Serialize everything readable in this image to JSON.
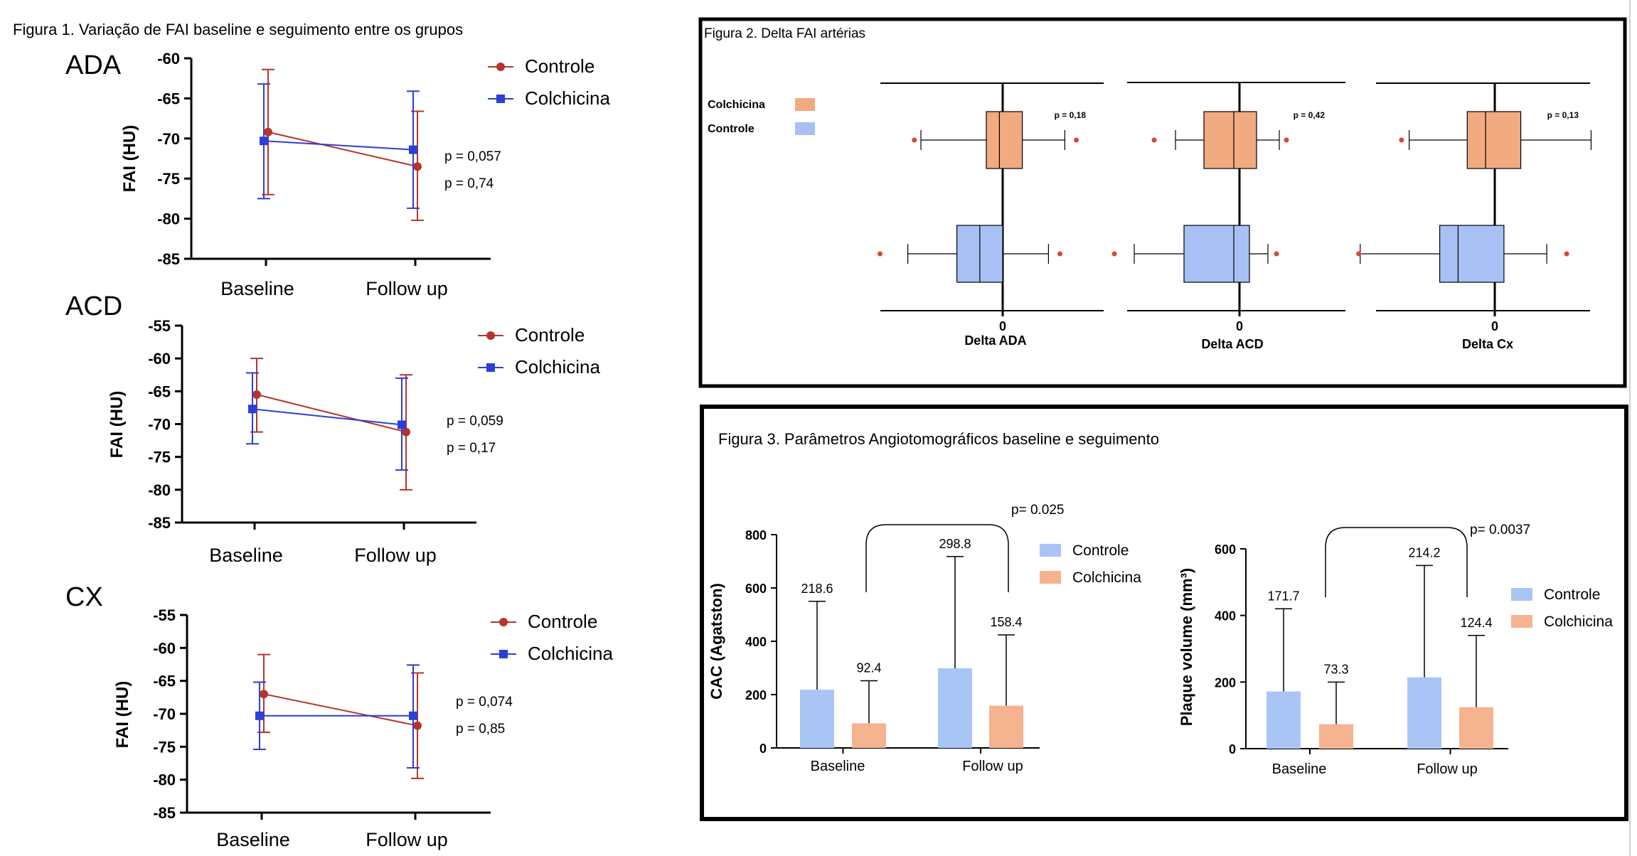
{
  "figure1": {
    "title": "Figura 1. Variação de FAI baseline e seguimento entre os grupos",
    "colors": {
      "Controle": "#b5352b",
      "Colchicina": "#2b3fd6"
    }
  },
  "figure2": {
    "title": "Figura 2. Delta FAI artérias",
    "legend": [
      {
        "name": "Colchicina",
        "color": "#f2aa80"
      },
      {
        "name": "Controle",
        "color": "#a9c0f4"
      }
    ]
  },
  "figure3": {
    "title": "Figura 3. Parâmetros Angiotomográficos baseline e seguimento",
    "colors": {
      "Controle": "#a9c5f5",
      "Colchicina": "#f5b38f"
    }
  },
  "chart_data": [
    {
      "type": "line",
      "id": "ada",
      "panel_label": "ADA",
      "ylabel": "FAI (HU)",
      "categories": [
        "Baseline",
        "Follow up"
      ],
      "ylim": [
        -85,
        -60
      ],
      "yticks": [
        -60,
        -65,
        -70,
        -75,
        -80,
        -85
      ],
      "series": [
        {
          "name": "Controle",
          "values": [
            -69.2,
            -73.5
          ],
          "err_low": [
            -77.0,
            -80.2
          ],
          "err_high": [
            -61.4,
            -66.6
          ]
        },
        {
          "name": "Colchicina",
          "values": [
            -70.3,
            -71.4
          ],
          "err_low": [
            -77.5,
            -78.7
          ],
          "err_high": [
            -63.2,
            -64.1
          ]
        }
      ],
      "annotations": [
        "p = 0,057",
        "p = 0,74"
      ]
    },
    {
      "type": "line",
      "id": "acd",
      "panel_label": "ACD",
      "ylabel": "FAI (HU)",
      "categories": [
        "Baseline",
        "Follow up"
      ],
      "ylim": [
        -85,
        -55
      ],
      "yticks": [
        -55,
        -60,
        -65,
        -70,
        -75,
        -80,
        -85
      ],
      "series": [
        {
          "name": "Controle",
          "values": [
            -65.5,
            -71.2
          ],
          "err_low": [
            -71.2,
            -80.0
          ],
          "err_high": [
            -60.0,
            -62.5
          ]
        },
        {
          "name": "Colchicina",
          "values": [
            -67.7,
            -70.1
          ],
          "err_low": [
            -73.0,
            -77.0
          ],
          "err_high": [
            -62.2,
            -63.0
          ]
        }
      ],
      "annotations": [
        "p = 0,059",
        "p = 0,17"
      ]
    },
    {
      "type": "line",
      "id": "cx",
      "panel_label": "CX",
      "ylabel": "FAI (HU)",
      "categories": [
        "Baseline",
        "Follow up"
      ],
      "ylim": [
        -85,
        -55
      ],
      "yticks": [
        -55,
        -60,
        -65,
        -70,
        -75,
        -80,
        -85
      ],
      "series": [
        {
          "name": "Controle",
          "values": [
            -67.0,
            -71.8
          ],
          "err_low": [
            -72.8,
            -79.8
          ],
          "err_high": [
            -61.0,
            -63.8
          ]
        },
        {
          "name": "Colchicina",
          "values": [
            -70.3,
            -70.3
          ],
          "err_low": [
            -75.4,
            -78.2
          ],
          "err_high": [
            -65.2,
            -62.6
          ]
        }
      ],
      "annotations": [
        "p = 0,074",
        "p = 0,85"
      ]
    },
    {
      "type": "box",
      "id": "delta-ada",
      "xlabel": "Delta ADA",
      "zero_label": "0",
      "annotation": "p = 0,18",
      "boxes": [
        {
          "name": "Colchicina",
          "whisker_low": -5.0,
          "q1": -1.0,
          "median": -0.2,
          "q3": 1.2,
          "whisker_high": 3.8,
          "outliers": [
            -5.4,
            4.5
          ]
        },
        {
          "name": "Controle",
          "whisker_low": -5.8,
          "q1": -2.8,
          "median": -1.4,
          "q3": 0.0,
          "whisker_high": 2.8,
          "outliers": [
            -7.5,
            3.5
          ]
        }
      ]
    },
    {
      "type": "box",
      "id": "delta-acd",
      "xlabel": "Delta ACD",
      "zero_label": "0",
      "annotation": "p = 0,42",
      "boxes": [
        {
          "name": "Colchicina",
          "whisker_low": -4.5,
          "q1": -2.5,
          "median": -0.4,
          "q3": 1.2,
          "whisker_high": 2.8,
          "outliers": [
            -6.0,
            3.3
          ]
        },
        {
          "name": "Controle",
          "whisker_low": -7.4,
          "q1": -3.9,
          "median": -0.4,
          "q3": 0.7,
          "whisker_high": 2.0,
          "outliers": [
            -8.8,
            2.6
          ]
        }
      ]
    },
    {
      "type": "box",
      "id": "delta-cx",
      "xlabel": "Delta Cx",
      "zero_label": "0",
      "annotation": "p = 0,13",
      "boxes": [
        {
          "name": "Colchicina",
          "whisker_low": -5.6,
          "q1": -1.8,
          "median": -0.6,
          "q3": 1.7,
          "whisker_high": 6.3,
          "outliers": [
            -6.1
          ]
        },
        {
          "name": "Controle",
          "whisker_low": -8.8,
          "q1": -3.6,
          "median": -2.4,
          "q3": 0.6,
          "whisker_high": 3.4,
          "outliers": [
            -8.9,
            4.7
          ]
        }
      ]
    },
    {
      "type": "bar",
      "id": "cac",
      "ylabel": "CAC (Agatston)",
      "categories": [
        "Baseline",
        "Follow up"
      ],
      "ylim": [
        0,
        800
      ],
      "yticks": [
        0,
        200,
        400,
        600,
        800
      ],
      "series": [
        {
          "name": "Controle",
          "values": [
            218.6,
            298.8
          ],
          "err_high": [
            550,
            718
          ]
        },
        {
          "name": "Colchicina",
          "values": [
            92.4,
            158.4
          ],
          "err_high": [
            252,
            424
          ]
        }
      ],
      "value_labels": [
        "218.6",
        "92.4",
        "298.8",
        "158.4"
      ],
      "annotation": "p= 0.025"
    },
    {
      "type": "bar",
      "id": "plaque",
      "ylabel": "Plaque volume  (mm³)",
      "categories": [
        "Baseline",
        "Follow up"
      ],
      "ylim": [
        0,
        600
      ],
      "yticks": [
        0,
        200,
        400,
        600
      ],
      "series": [
        {
          "name": "Controle",
          "values": [
            171.7,
            214.2
          ],
          "err_high": [
            420,
            550
          ]
        },
        {
          "name": "Colchicina",
          "values": [
            73.3,
            124.4
          ],
          "err_high": [
            200,
            340
          ]
        }
      ],
      "value_labels": [
        "171.7",
        "73.3",
        "214.2",
        "124.4"
      ],
      "annotation": "p= 0.0037"
    }
  ]
}
